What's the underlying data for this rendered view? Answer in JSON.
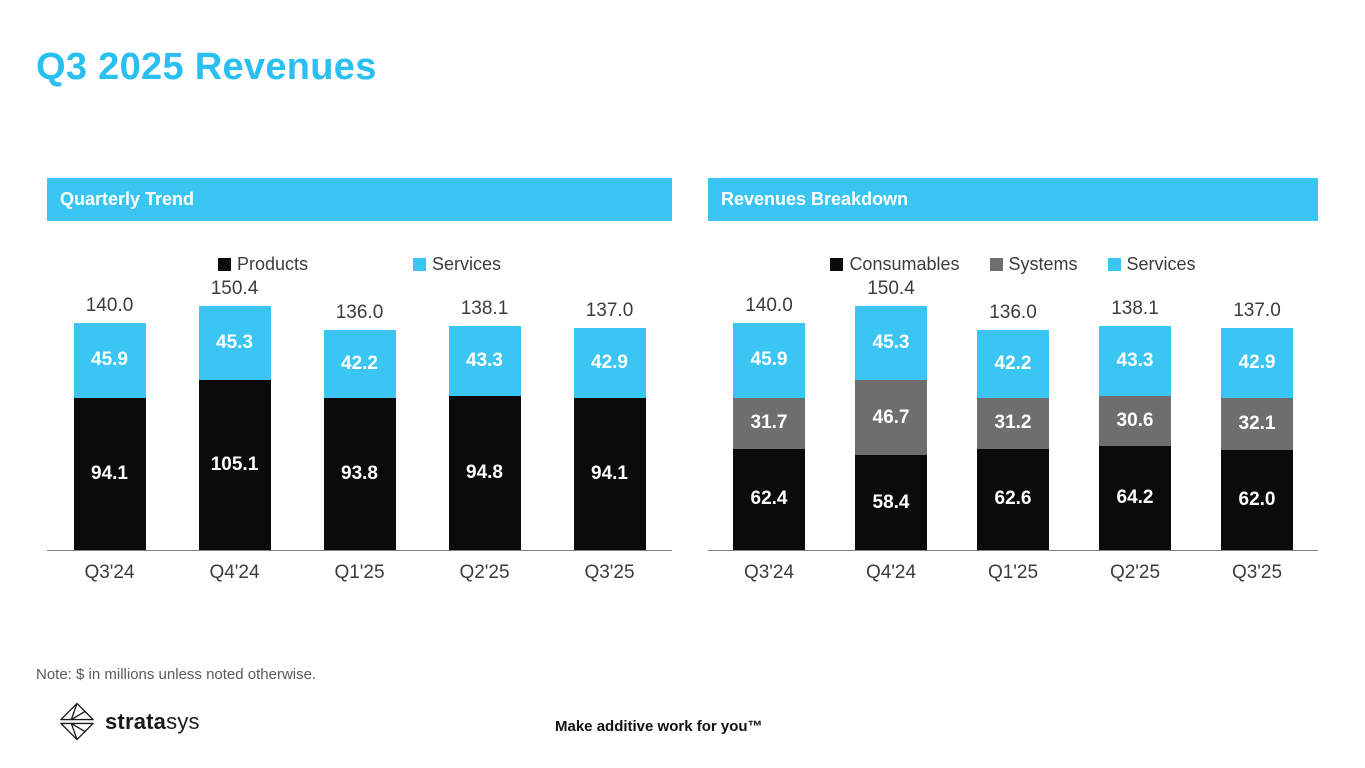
{
  "page": {
    "title": "Q3 2025 Revenues",
    "note": "Note: $ in millions unless noted otherwise.",
    "tagline": "Make additive work for you™",
    "logo_text_bold": "strata",
    "logo_text_light": "sys",
    "logo_icon": "stratasys-origami-icon"
  },
  "colors": {
    "brand_cyan": "#3bc5f3",
    "title_cyan": "#29bff0",
    "segment_black": "#0b0b0b",
    "segment_gray": "#6e6e6e",
    "axis_gray": "#7f7f7f",
    "label_text": "#3c3c3c"
  },
  "chart_data": [
    {
      "type": "bar",
      "stacked": true,
      "title": "Quarterly Trend",
      "categories": [
        "Q3'24",
        "Q4'24",
        "Q1'25",
        "Q2'25",
        "Q3'25"
      ],
      "series": [
        {
          "name": "Products",
          "color": "#0b0b0b",
          "values": [
            94.1,
            105.1,
            93.8,
            94.8,
            94.1
          ]
        },
        {
          "name": "Services",
          "color": "#3bc5f3",
          "values": [
            45.9,
            45.3,
            42.2,
            43.3,
            42.9
          ]
        }
      ],
      "totals": [
        140.0,
        150.4,
        136.0,
        138.1,
        137.0
      ],
      "legend_position": "top",
      "value_labels": "white-inside-segments",
      "grid": false,
      "ylim": [
        0,
        160
      ]
    },
    {
      "type": "bar",
      "stacked": true,
      "title": "Revenues Breakdown",
      "categories": [
        "Q3'24",
        "Q4'24",
        "Q1'25",
        "Q2'25",
        "Q3'25"
      ],
      "series": [
        {
          "name": "Consumables",
          "color": "#0b0b0b",
          "values": [
            62.4,
            58.4,
            62.6,
            64.2,
            62.0
          ]
        },
        {
          "name": "Systems",
          "color": "#6e6e6e",
          "values": [
            31.7,
            46.7,
            31.2,
            30.6,
            32.1
          ]
        },
        {
          "name": "Services",
          "color": "#3bc5f3",
          "values": [
            45.9,
            45.3,
            42.2,
            43.3,
            42.9
          ]
        }
      ],
      "totals": [
        140.0,
        150.4,
        136.0,
        138.1,
        137.0
      ],
      "legend_position": "top",
      "value_labels": "white-inside-segments",
      "grid": false,
      "ylim": [
        0,
        160
      ]
    }
  ]
}
